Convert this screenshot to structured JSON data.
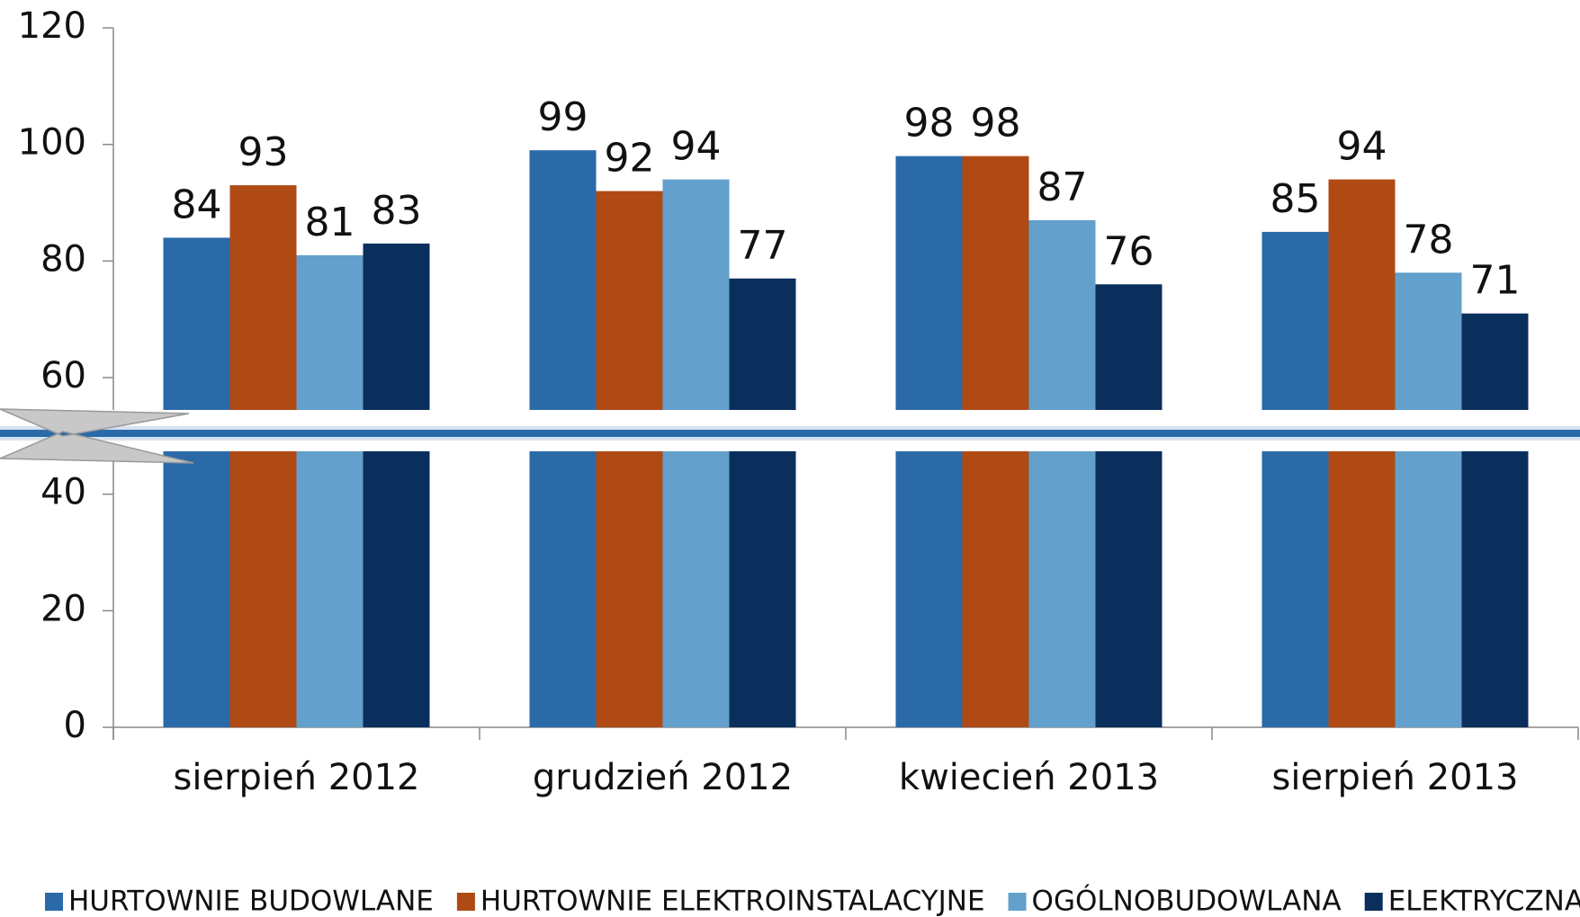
{
  "chart_data": {
    "type": "bar",
    "categories": [
      "sierpień 2012",
      "grudzień 2012",
      "kwiecień 2013",
      "sierpień 2013"
    ],
    "series": [
      {
        "name": "HURTOWNIE BUDOWLANE",
        "color": "#2b6aa8",
        "values": [
          84,
          99,
          98,
          85
        ]
      },
      {
        "name": "HURTOWNIE ELEKTROINSTALACYJNE",
        "color": "#b04a14",
        "values": [
          93,
          92,
          98,
          94
        ]
      },
      {
        "name": "OGÓLNOBUDOWLANA",
        "color": "#63a0cb",
        "values": [
          81,
          94,
          87,
          78
        ]
      },
      {
        "name": "ELEKTRYCZNA",
        "color": "#0a2f5c",
        "values": [
          83,
          77,
          76,
          71
        ]
      }
    ],
    "ylim": [
      0,
      120
    ],
    "yticks": [
      0,
      20,
      40,
      60,
      80,
      100,
      120
    ],
    "grid": false,
    "legend": "bottom"
  }
}
